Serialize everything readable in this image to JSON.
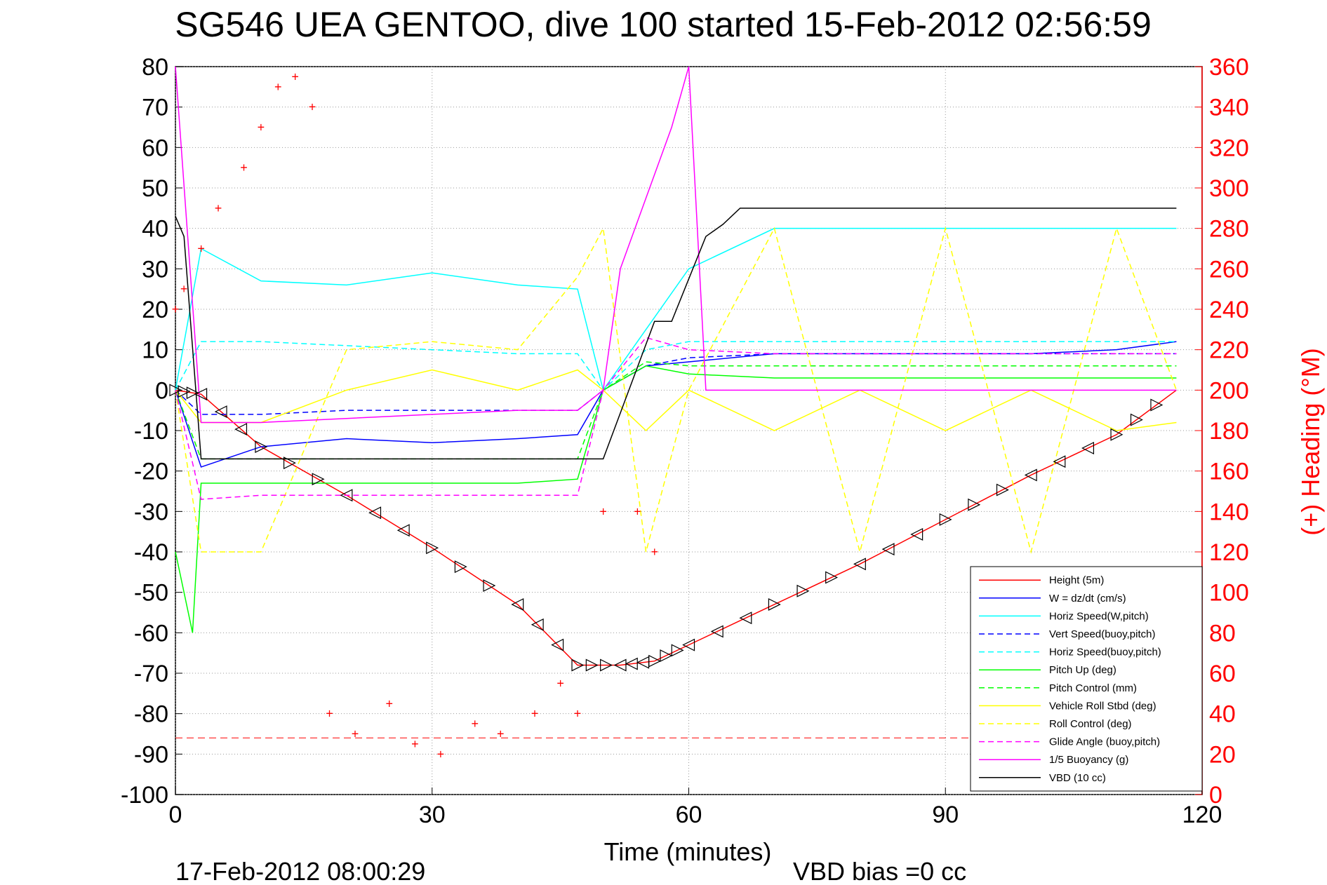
{
  "title": "SG546 UEA GENTOO, dive 100 started 15-Feb-2012 02:56:59",
  "footer": {
    "timestamp": "17-Feb-2012 08:00:29",
    "vbd_bias": "VBD bias =0 cc"
  },
  "colors": {
    "red": "#ff0000",
    "blue": "#0000ff",
    "cyan": "#00ffff",
    "green": "#00ff00",
    "yellow": "#ffff00",
    "magenta": "#ff00ff",
    "black": "#000000"
  },
  "chart_data": {
    "type": "line",
    "xlabel": "Time (minutes)",
    "ylabel_right": "(+) Heading (°M)",
    "xlim": [
      0,
      120
    ],
    "ylim": [
      -100,
      80
    ],
    "y2lim": [
      0,
      360
    ],
    "x_ticks": [
      "0",
      "30",
      "60",
      "90",
      "120"
    ],
    "y_ticks": [
      "80",
      "70",
      "60",
      "50",
      "40",
      "30",
      "20",
      "10",
      "0",
      "-10",
      "-20",
      "-30",
      "-40",
      "-50",
      "-60",
      "-70",
      "-80",
      "-90",
      "-100"
    ],
    "y2_ticks": [
      "360",
      "340",
      "320",
      "300",
      "280",
      "260",
      "240",
      "220",
      "200",
      "180",
      "160",
      "140",
      "120",
      "100",
      "80",
      "60",
      "40",
      "20",
      "0"
    ],
    "grid": true,
    "legend_location": "bottom-right",
    "legend": [
      {
        "label": "Height (5m)",
        "color": "#ff0000",
        "style": "solid"
      },
      {
        "label": "W = dz/dt (cm/s)",
        "color": "#0000ff",
        "style": "solid"
      },
      {
        "label": "Horiz Speed(W,pitch)",
        "color": "#00ffff",
        "style": "solid"
      },
      {
        "label": "Vert Speed(buoy,pitch)",
        "color": "#0000ff",
        "style": "dashed"
      },
      {
        "label": "Horiz Speed(buoy,pitch)",
        "color": "#00ffff",
        "style": "dashed"
      },
      {
        "label": "Pitch Up (deg)",
        "color": "#00ff00",
        "style": "solid"
      },
      {
        "label": "Pitch Control (mm)",
        "color": "#00ff00",
        "style": "dashed"
      },
      {
        "label": "Vehicle Roll Stbd (deg)",
        "color": "#ffff00",
        "style": "solid"
      },
      {
        "label": "Roll Control (deg)",
        "color": "#ffff00",
        "style": "dashed"
      },
      {
        "label": "Glide Angle (buoy,pitch)",
        "color": "#ff00ff",
        "style": "dashed"
      },
      {
        "label": "1/5 Buoyancy (g)",
        "color": "#ff00ff",
        "style": "solid"
      },
      {
        "label": "VBD (10 cc)",
        "color": "#000000",
        "style": "solid"
      }
    ],
    "series": [
      {
        "name": "Height (5m)",
        "x": [
          0,
          3,
          10,
          20,
          30,
          40,
          47,
          52,
          56,
          60,
          70,
          80,
          90,
          100,
          110,
          117
        ],
        "y": [
          0,
          -1,
          -14,
          -26,
          -39,
          -53,
          -68,
          -68,
          -67,
          -63,
          -53,
          -43,
          -32,
          -21,
          -11,
          0
        ]
      },
      {
        "name": "W = dz/dt (cm/s)",
        "x": [
          0,
          3,
          10,
          20,
          30,
          40,
          47,
          50,
          55,
          60,
          70,
          80,
          90,
          100,
          110,
          117
        ],
        "y": [
          0,
          -19,
          -14,
          -12,
          -13,
          -12,
          -11,
          0,
          6,
          7,
          9,
          9,
          9,
          9,
          10,
          12
        ]
      },
      {
        "name": "Horiz Speed(W,pitch)",
        "x": [
          0,
          3,
          10,
          20,
          30,
          40,
          47,
          50,
          55,
          60,
          70,
          80,
          90,
          100,
          110,
          117
        ],
        "y": [
          0,
          35,
          27,
          26,
          29,
          26,
          25,
          0,
          15,
          30,
          40,
          40,
          40,
          40,
          40,
          40
        ]
      },
      {
        "name": "Vert Speed(buoy,pitch)",
        "x": [
          0,
          3,
          10,
          20,
          30,
          40,
          47,
          50,
          55,
          60,
          70,
          80,
          90,
          100,
          110,
          117
        ],
        "y": [
          0,
          -6,
          -6,
          -5,
          -5,
          -5,
          -5,
          0,
          6,
          8,
          9,
          9,
          9,
          9,
          9,
          9
        ]
      },
      {
        "name": "Horiz Speed(buoy,pitch)",
        "x": [
          0,
          3,
          10,
          20,
          30,
          40,
          47,
          50,
          55,
          60,
          70,
          80,
          90,
          100,
          110,
          117
        ],
        "y": [
          0,
          12,
          12,
          11,
          10,
          9,
          9,
          0,
          10,
          12,
          12,
          12,
          12,
          12,
          12,
          12
        ]
      },
      {
        "name": "Pitch Up (deg)",
        "x": [
          0,
          2,
          3,
          10,
          20,
          30,
          40,
          47,
          50,
          55,
          60,
          70,
          80,
          90,
          100,
          110,
          117
        ],
        "y": [
          -40,
          -60,
          -23,
          -23,
          -23,
          -23,
          -23,
          -22,
          0,
          6,
          4,
          3,
          3,
          3,
          3,
          3,
          3
        ]
      },
      {
        "name": "Pitch Control (mm)",
        "x": [
          0,
          3,
          10,
          20,
          30,
          40,
          47,
          50,
          55,
          60,
          70,
          80,
          90,
          100,
          110,
          117
        ],
        "y": [
          0,
          -17,
          -17,
          -17,
          -17,
          -17,
          -17,
          0,
          7,
          6,
          6,
          6,
          6,
          6,
          6,
          6
        ]
      },
      {
        "name": "Vehicle Roll Stbd (deg)",
        "x": [
          0,
          3,
          10,
          20,
          30,
          40,
          47,
          50,
          55,
          60,
          70,
          80,
          90,
          100,
          110,
          117
        ],
        "y": [
          0,
          -8,
          -8,
          0,
          5,
          0,
          5,
          0,
          -10,
          0,
          -10,
          0,
          -10,
          0,
          -10,
          -8
        ]
      },
      {
        "name": "Roll Control (deg)",
        "x": [
          0,
          3,
          10,
          20,
          30,
          40,
          47,
          50,
          55,
          60,
          70,
          80,
          90,
          100,
          110,
          117
        ],
        "y": [
          0,
          -40,
          -40,
          10,
          12,
          10,
          28,
          40,
          -40,
          0,
          40,
          -40,
          40,
          -40,
          40,
          0
        ]
      },
      {
        "name": "Glide Angle (buoy,pitch)",
        "x": [
          0,
          3,
          10,
          20,
          30,
          40,
          47,
          50,
          55,
          60,
          70,
          80,
          90,
          100,
          110,
          117
        ],
        "y": [
          0,
          -27,
          -26,
          -26,
          -26,
          -26,
          -26,
          0,
          13,
          10,
          9,
          9,
          9,
          9,
          9,
          9
        ]
      },
      {
        "name": "1/5 Buoyancy (g)",
        "x": [
          0,
          3,
          10,
          20,
          30,
          40,
          47,
          50,
          52,
          58,
          60,
          62,
          117
        ],
        "y": [
          80,
          -8,
          -8,
          -7,
          -6,
          -5,
          -5,
          0,
          30,
          65,
          80,
          0,
          0
        ]
      },
      {
        "name": "VBD (10 cc)",
        "x": [
          0,
          1,
          3,
          10,
          20,
          30,
          40,
          47,
          50,
          53,
          56,
          58,
          62,
          64,
          66,
          117
        ],
        "y": [
          43,
          38,
          -17,
          -17,
          -17,
          -17,
          -17,
          -17,
          -17,
          0,
          17,
          17,
          38,
          41,
          45,
          45
        ]
      },
      {
        "name": "(+) Heading (°M)",
        "axis": "right",
        "x": [
          0,
          1,
          3,
          5,
          8,
          10,
          12,
          14,
          16,
          18,
          21,
          25,
          28,
          31,
          35,
          38,
          42,
          45,
          47,
          50,
          54,
          56
        ],
        "y": [
          240,
          250,
          270,
          290,
          310,
          330,
          350,
          355,
          340,
          40,
          30,
          45,
          25,
          20,
          35,
          30,
          40,
          55,
          40,
          140,
          140,
          120
        ]
      }
    ],
    "annotations": {
      "depth_markers_on_height": true,
      "heading_reference_line_deg": 28
    }
  }
}
